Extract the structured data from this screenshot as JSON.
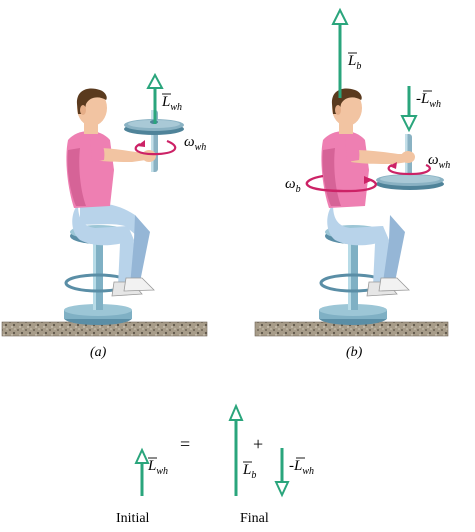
{
  "colors": {
    "arrow": "#2aa57c",
    "skin": "#f2c4a2",
    "hair": "#5a3a1e",
    "shirt": "#ee7fb2",
    "shirt_shadow": "#d66397",
    "pants": "#b8d3ea",
    "pants_shadow": "#95b6d6",
    "stool": "#7fb0c4",
    "stool_dark": "#5a8ea6",
    "wheel": "#8ab2c3",
    "wheel_dark": "#4f8399",
    "rotation": "#cc2266",
    "ground": "#9a8f7d"
  },
  "panel_a": {
    "label": "(a)",
    "vector_label": "L",
    "vector_sub": "wh",
    "omega_label": "ω",
    "omega_sub": "wh"
  },
  "panel_b": {
    "label": "(b)",
    "body_vector_label": "L",
    "body_vector_sub": "b",
    "wheel_vector_label": "-L",
    "wheel_vector_sub": "wh",
    "omega_wheel_label": "ω",
    "omega_wheel_sub": "wh",
    "omega_body_label": "ω",
    "omega_body_sub": "b"
  },
  "equation": {
    "initial_label": "L",
    "initial_sub": "wh",
    "equals": "=",
    "plus": "+",
    "body_label": "L",
    "body_sub": "b",
    "wheel_label": "-L",
    "wheel_sub": "wh",
    "caption_initial": "Initial",
    "caption_final": "Final"
  }
}
